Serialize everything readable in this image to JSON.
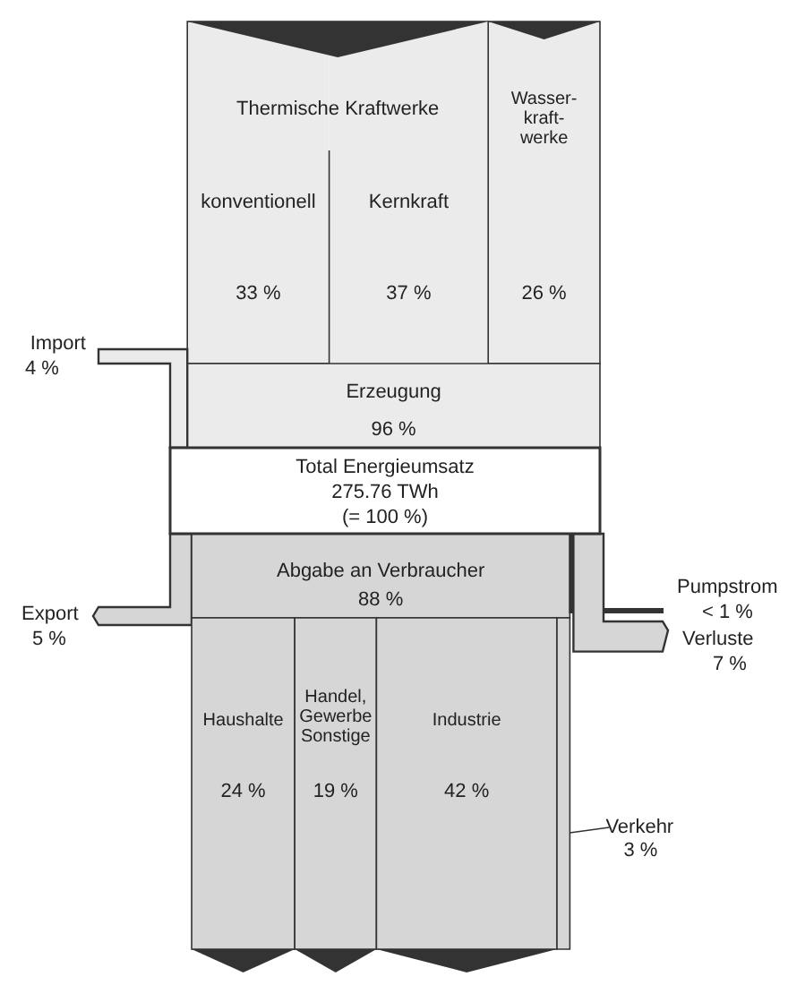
{
  "chart_data": {
    "type": "other",
    "title": "Total Energieumsatz",
    "subtitle": "275.76 TWh",
    "annotations": [
      "Thermische Kraftwerke",
      "(= 100 %)"
    ],
    "categories": [
      "konventionell",
      "Kernkraft",
      "Wasser-\nkraft-\nwerke",
      "Import",
      "Erzeugung",
      "Abgabe an Verbraucher",
      "Export",
      "Pumpstrom",
      "Verluste",
      "Haushalte",
      "Handel,\nGewerbe\nSonstige",
      "Industrie",
      "Verkehr"
    ],
    "values": [
      33,
      37,
      26,
      4,
      96,
      88,
      5,
      null,
      7,
      24,
      19,
      42,
      3
    ],
    "value_labels": [
      "33 %",
      "37 %",
      "26 %",
      "4 %",
      "96 %",
      "88 %",
      "5 %",
      "< 1 %",
      "7 %",
      "24 %",
      "19 %",
      "42 %",
      "3 %"
    ],
    "colors": [
      "#ebebeb",
      "#ebebeb",
      "#ebebeb",
      "#ebebeb",
      "#ebebeb",
      "#d6d6d6",
      "#d6d6d6",
      "#333333",
      "#d6d6d6",
      "#d6d6d6",
      "#d6d6d6",
      "#d6d6d6",
      "#d6d6d6"
    ]
  }
}
